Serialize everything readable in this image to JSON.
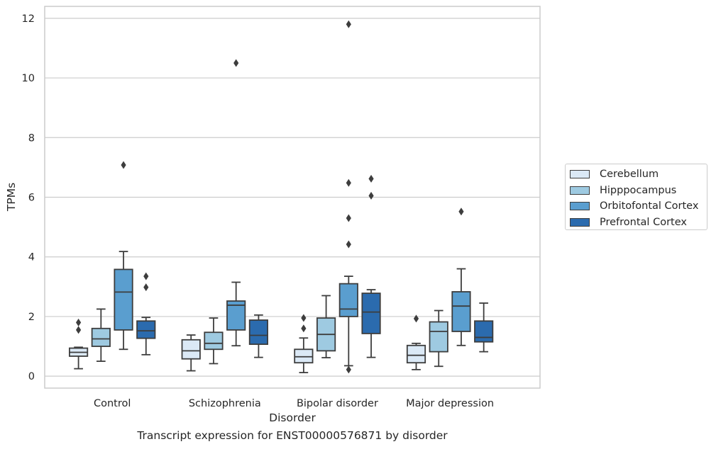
{
  "chart_data": {
    "type": "box",
    "caption": "Transcript expression for ENST00000576871 by disorder",
    "xlabel": "Disorder",
    "ylabel": "TPMs",
    "ylim": [
      -0.4,
      12.4
    ],
    "yticks": [
      0,
      2,
      4,
      6,
      8,
      10,
      12
    ],
    "grid": true,
    "legend_position": "right",
    "categories": [
      "Control",
      "Schizophrenia",
      "Bipolar disorder",
      "Major depression"
    ],
    "series": [
      {
        "name": "Cerebellum",
        "color": "#dbe9f6",
        "boxes": [
          {
            "whisker_low": 0.25,
            "q1": 0.67,
            "median": 0.8,
            "q3": 0.94,
            "whisker_high": 0.97,
            "outliers": [
              1.55,
              1.8
            ]
          },
          {
            "whisker_low": 0.18,
            "q1": 0.58,
            "median": 0.85,
            "q3": 1.22,
            "whisker_high": 1.38,
            "outliers": []
          },
          {
            "whisker_low": 0.12,
            "q1": 0.45,
            "median": 0.65,
            "q3": 0.9,
            "whisker_high": 1.28,
            "outliers": [
              1.6,
              1.95
            ]
          },
          {
            "whisker_low": 0.22,
            "q1": 0.45,
            "median": 0.7,
            "q3": 1.03,
            "whisker_high": 1.1,
            "outliers": [
              1.93
            ]
          }
        ]
      },
      {
        "name": "Hipppocampus",
        "color": "#9ecae1",
        "boxes": [
          {
            "whisker_low": 0.5,
            "q1": 1.0,
            "median": 1.25,
            "q3": 1.6,
            "whisker_high": 2.25,
            "outliers": []
          },
          {
            "whisker_low": 0.42,
            "q1": 0.9,
            "median": 1.1,
            "q3": 1.47,
            "whisker_high": 1.95,
            "outliers": []
          },
          {
            "whisker_low": 0.62,
            "q1": 0.85,
            "median": 1.4,
            "q3": 1.95,
            "whisker_high": 2.7,
            "outliers": []
          },
          {
            "whisker_low": 0.33,
            "q1": 0.82,
            "median": 1.5,
            "q3": 1.82,
            "whisker_high": 2.2,
            "outliers": []
          }
        ]
      },
      {
        "name": "Orbitofontal Cortex",
        "color": "#5a9ecf",
        "boxes": [
          {
            "whisker_low": 0.9,
            "q1": 1.55,
            "median": 2.82,
            "q3": 3.58,
            "whisker_high": 4.18,
            "outliers": [
              7.08
            ]
          },
          {
            "whisker_low": 1.02,
            "q1": 1.55,
            "median": 2.38,
            "q3": 2.52,
            "whisker_high": 3.15,
            "outliers": [
              10.5
            ]
          },
          {
            "whisker_low": 0.35,
            "q1": 2.0,
            "median": 2.25,
            "q3": 3.1,
            "whisker_high": 3.35,
            "outliers": [
              0.22,
              4.42,
              5.3,
              6.48,
              11.8
            ]
          },
          {
            "whisker_low": 1.03,
            "q1": 1.5,
            "median": 2.35,
            "q3": 2.83,
            "whisker_high": 3.6,
            "outliers": [
              5.52
            ]
          }
        ]
      },
      {
        "name": "Prefrontal Cortex",
        "color": "#2b6bae",
        "boxes": [
          {
            "whisker_low": 0.72,
            "q1": 1.27,
            "median": 1.52,
            "q3": 1.85,
            "whisker_high": 1.97,
            "outliers": [
              2.98,
              3.35
            ]
          },
          {
            "whisker_low": 0.63,
            "q1": 1.07,
            "median": 1.37,
            "q3": 1.88,
            "whisker_high": 2.05,
            "outliers": []
          },
          {
            "whisker_low": 0.63,
            "q1": 1.43,
            "median": 2.15,
            "q3": 2.78,
            "whisker_high": 2.9,
            "outliers": [
              6.05,
              6.62
            ]
          },
          {
            "whisker_low": 0.82,
            "q1": 1.15,
            "median": 1.3,
            "q3": 1.85,
            "whisker_high": 2.45,
            "outliers": []
          }
        ]
      }
    ]
  }
}
